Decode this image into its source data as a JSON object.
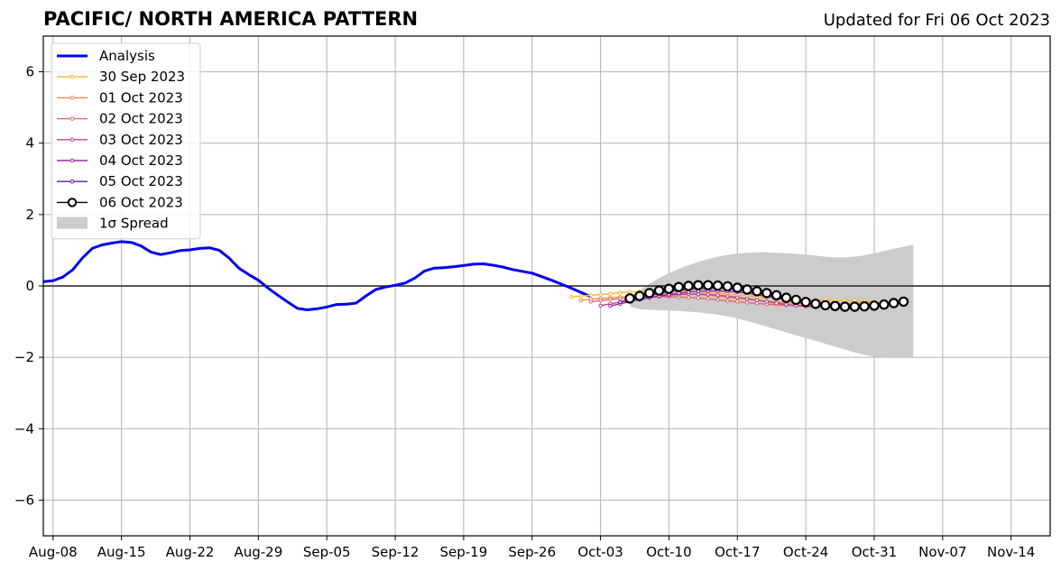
{
  "header": {
    "title": "PACIFIC/ NORTH AMERICA PATTERN",
    "subtitle": "Updated for Fri 06 Oct 2023"
  },
  "chart_data": {
    "type": "line",
    "x_axis": {
      "type": "date",
      "range": [
        "2023-08-07",
        "2023-11-18"
      ],
      "ticks": [
        {
          "date": "2023-08-08",
          "label": "Aug-08"
        },
        {
          "date": "2023-08-15",
          "label": "Aug-15"
        },
        {
          "date": "2023-08-22",
          "label": "Aug-22"
        },
        {
          "date": "2023-08-29",
          "label": "Aug-29"
        },
        {
          "date": "2023-09-05",
          "label": "Sep-05"
        },
        {
          "date": "2023-09-12",
          "label": "Sep-12"
        },
        {
          "date": "2023-09-19",
          "label": "Sep-19"
        },
        {
          "date": "2023-09-26",
          "label": "Sep-26"
        },
        {
          "date": "2023-10-03",
          "label": "Oct-03"
        },
        {
          "date": "2023-10-10",
          "label": "Oct-10"
        },
        {
          "date": "2023-10-17",
          "label": "Oct-17"
        },
        {
          "date": "2023-10-24",
          "label": "Oct-24"
        },
        {
          "date": "2023-10-31",
          "label": "Oct-31"
        },
        {
          "date": "2023-11-07",
          "label": "Nov-07"
        },
        {
          "date": "2023-11-14",
          "label": "Nov-14"
        }
      ]
    },
    "y_axis": {
      "range": [
        -7,
        7
      ],
      "ticks": [
        {
          "value": -6,
          "label": "−6"
        },
        {
          "value": -4,
          "label": "−4"
        },
        {
          "value": -2,
          "label": "−2"
        },
        {
          "value": 0,
          "label": "0"
        },
        {
          "value": 2,
          "label": "2"
        },
        {
          "value": 4,
          "label": "4"
        },
        {
          "value": 6,
          "label": "6"
        }
      ]
    },
    "grid": true,
    "zero_line": true,
    "legend_position": "top-left",
    "analysis": {
      "name": "Analysis",
      "color": "#0000ee",
      "start": "2023-08-07",
      "values": [
        0.12,
        0.15,
        0.25,
        0.45,
        0.78,
        1.05,
        1.15,
        1.2,
        1.24,
        1.22,
        1.12,
        0.95,
        0.88,
        0.93,
        0.99,
        1.01,
        1.05,
        1.07,
        1.0,
        0.78,
        0.5,
        0.32,
        0.16,
        -0.06,
        -0.26,
        -0.45,
        -0.63,
        -0.67,
        -0.64,
        -0.59,
        -0.52,
        -0.51,
        -0.48,
        -0.28,
        -0.1,
        -0.03,
        0.02,
        0.08,
        0.22,
        0.42,
        0.5,
        0.51,
        0.54,
        0.57,
        0.61,
        0.62,
        0.58,
        0.53,
        0.46,
        0.41,
        0.36,
        0.26,
        0.16,
        0.05,
        -0.06,
        -0.18,
        -0.3
      ]
    },
    "forecasts": [
      {
        "name": "30 Sep 2023",
        "color": "#fcb433",
        "start": "2023-09-30",
        "values": [
          -0.31,
          -0.28,
          -0.26,
          -0.24,
          -0.22,
          -0.19,
          -0.17,
          -0.16,
          -0.15,
          -0.14,
          -0.14,
          -0.14,
          -0.15,
          -0.16,
          -0.18,
          -0.2,
          -0.22,
          -0.25,
          -0.27,
          -0.3,
          -0.32,
          -0.34,
          -0.36,
          -0.37,
          -0.38,
          -0.39,
          -0.39,
          -0.4,
          -0.4,
          -0.41,
          -0.42,
          -0.44
        ]
      },
      {
        "name": "01 Oct 2023",
        "color": "#f28c4a",
        "start": "2023-10-01",
        "values": [
          -0.4,
          -0.37,
          -0.35,
          -0.33,
          -0.31,
          -0.29,
          -0.27,
          -0.25,
          -0.24,
          -0.23,
          -0.23,
          -0.23,
          -0.24,
          -0.26,
          -0.28,
          -0.31,
          -0.34,
          -0.37,
          -0.4,
          -0.43,
          -0.45,
          -0.47,
          -0.48,
          -0.49,
          -0.5,
          -0.51,
          -0.5,
          -0.5,
          -0.49,
          -0.48,
          -0.47
        ]
      },
      {
        "name": "02 Oct 2023",
        "color": "#e06a6e",
        "start": "2023-10-02",
        "values": [
          -0.44,
          -0.41,
          -0.38,
          -0.36,
          -0.34,
          -0.32,
          -0.31,
          -0.3,
          -0.3,
          -0.31,
          -0.32,
          -0.34,
          -0.36,
          -0.39,
          -0.42,
          -0.44,
          -0.47,
          -0.49,
          -0.51,
          -0.53,
          -0.54,
          -0.55,
          -0.56,
          -0.56,
          -0.56,
          -0.55,
          -0.54,
          -0.53,
          -0.52,
          -0.51
        ]
      },
      {
        "name": "03 Oct 2023",
        "color": "#c2418b",
        "start": "2023-10-03",
        "values": [
          -0.55,
          -0.5,
          -0.45,
          -0.41,
          -0.37,
          -0.33,
          -0.29,
          -0.26,
          -0.24,
          -0.23,
          -0.23,
          -0.24,
          -0.26,
          -0.29,
          -0.32,
          -0.36,
          -0.4,
          -0.44,
          -0.48,
          -0.52,
          -0.55,
          -0.57,
          -0.58,
          -0.58,
          -0.58,
          -0.57,
          -0.56,
          -0.55
        ]
      },
      {
        "name": "04 Oct 2023",
        "color": "#9a2ca3",
        "start": "2023-10-04",
        "values": [
          -0.56,
          -0.5,
          -0.44,
          -0.38,
          -0.33,
          -0.28,
          -0.24,
          -0.2,
          -0.17,
          -0.15,
          -0.14,
          -0.14,
          -0.15,
          -0.17,
          -0.2,
          -0.24,
          -0.29,
          -0.34,
          -0.39,
          -0.44,
          -0.49,
          -0.52,
          -0.55,
          -0.57,
          -0.58,
          -0.58,
          -0.57
        ]
      },
      {
        "name": "05 Oct 2023",
        "color": "#5b17a6",
        "start": "2023-10-05",
        "values": [
          -0.45,
          -0.38,
          -0.32,
          -0.26,
          -0.21,
          -0.16,
          -0.12,
          -0.09,
          -0.07,
          -0.06,
          -0.06,
          -0.07,
          -0.1,
          -0.14,
          -0.19,
          -0.24,
          -0.3,
          -0.36,
          -0.42,
          -0.47,
          -0.52,
          -0.55,
          -0.57,
          -0.58,
          -0.58,
          -0.57
        ]
      },
      {
        "name": "06 Oct 2023",
        "color": "#000000",
        "start": "2023-10-06",
        "markers": "open-circle",
        "values": [
          -0.35,
          -0.28,
          -0.2,
          -0.13,
          -0.08,
          -0.03,
          0.0,
          0.02,
          0.02,
          0.01,
          -0.01,
          -0.05,
          -0.1,
          -0.15,
          -0.2,
          -0.26,
          -0.33,
          -0.39,
          -0.45,
          -0.5,
          -0.54,
          -0.56,
          -0.58,
          -0.58,
          -0.57,
          -0.55,
          -0.52,
          -0.48,
          -0.44
        ]
      }
    ],
    "spread": {
      "name": "1σ Spread",
      "color": "#cccccc",
      "start": "2023-10-06",
      "upper": [
        -0.3,
        -0.12,
        0.06,
        0.22,
        0.36,
        0.48,
        0.58,
        0.67,
        0.75,
        0.82,
        0.87,
        0.91,
        0.93,
        0.94,
        0.94,
        0.93,
        0.92,
        0.9,
        0.88,
        0.85,
        0.82,
        0.8,
        0.8,
        0.82,
        0.86,
        0.92,
        0.98,
        1.04,
        1.1,
        1.16
      ],
      "lower": [
        -0.58,
        -0.65,
        -0.67,
        -0.68,
        -0.69,
        -0.7,
        -0.72,
        -0.74,
        -0.77,
        -0.8,
        -0.85,
        -0.91,
        -0.98,
        -1.06,
        -1.14,
        -1.22,
        -1.3,
        -1.38,
        -1.46,
        -1.54,
        -1.62,
        -1.7,
        -1.78,
        -1.86,
        -1.93,
        -1.98,
        -2.01,
        -2.02,
        -2.02,
        -2.02
      ]
    }
  }
}
